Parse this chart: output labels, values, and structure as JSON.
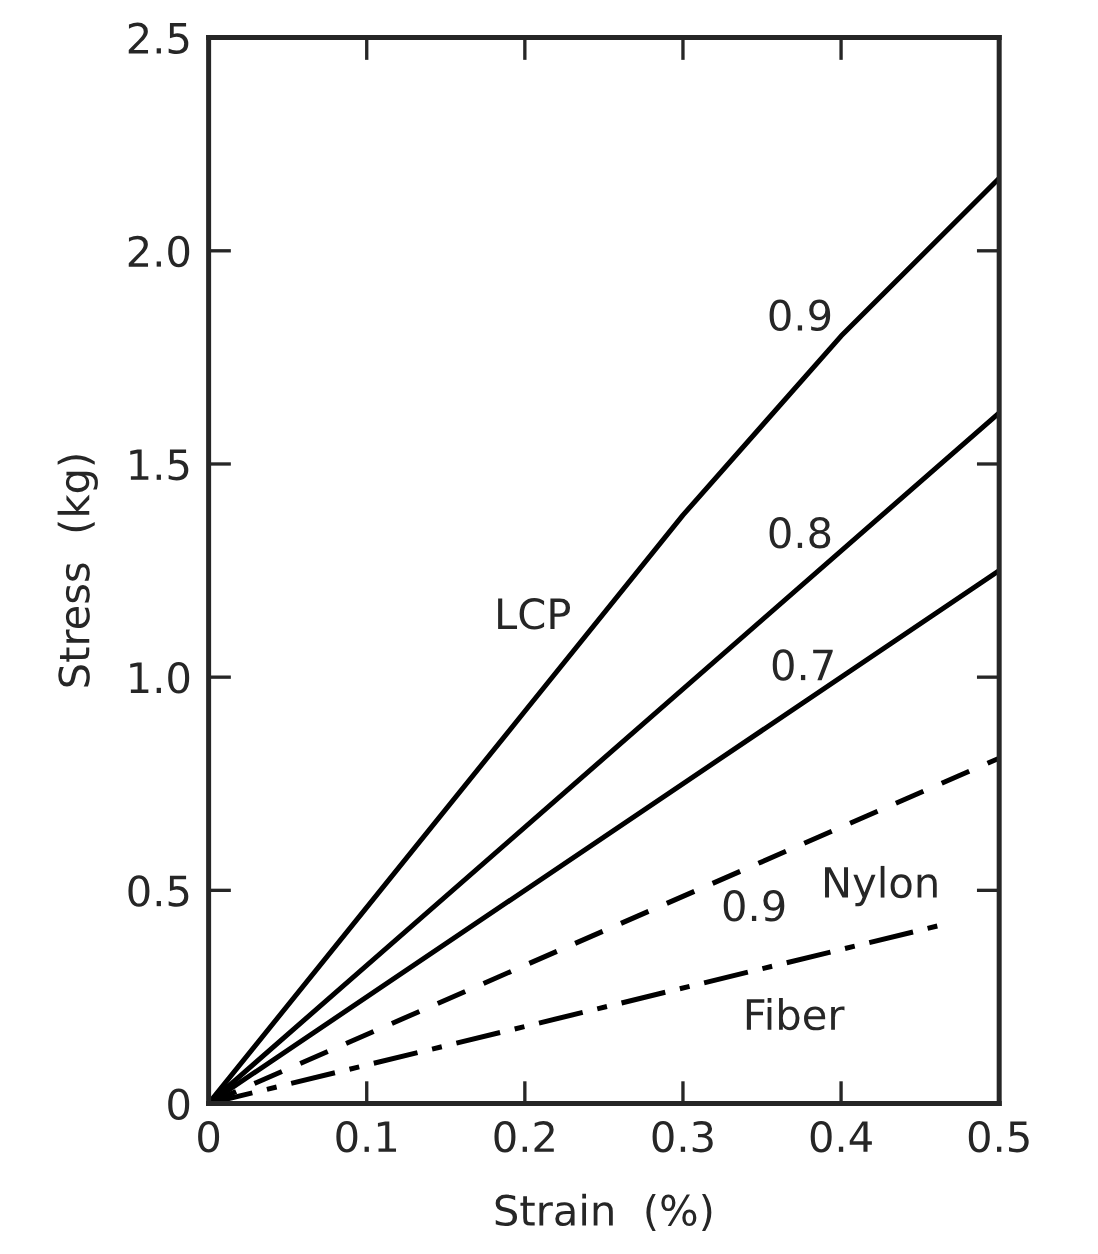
{
  "chart_data": {
    "type": "line",
    "xlabel": "Strain  (%)",
    "ylabel": "Stress  (kg)",
    "xlim": [
      0,
      0.5
    ],
    "ylim": [
      0,
      2.5
    ],
    "xticks": [
      {
        "value": 0,
        "label": "0"
      },
      0.1,
      0.2,
      0.3,
      0.4,
      0.5
    ],
    "yticks": [
      {
        "value": 0,
        "label": "0"
      },
      0.5,
      {
        "value": 1,
        "label": "1.0"
      },
      1.5,
      {
        "value": 2,
        "label": "2.0"
      },
      2.5
    ],
    "grid": false,
    "legend": false,
    "marker": "none",
    "series": [
      {
        "name": "0.9",
        "color": "#000000",
        "line_style": "solid",
        "x": [
          0,
          0.1,
          0.2,
          0.3,
          0.4,
          0.5
        ],
        "values": [
          0,
          0.46,
          0.92,
          1.38,
          1.8,
          2.17
        ]
      },
      {
        "name": "0.8",
        "color": "#000000",
        "line_style": "solid",
        "x": [
          0,
          0.5
        ],
        "values": [
          0,
          1.62
        ]
      },
      {
        "name": "0.7",
        "color": "#000000",
        "line_style": "solid",
        "x": [
          0,
          0.5
        ],
        "values": [
          0,
          1.25
        ]
      },
      {
        "name": "0.9",
        "color": "#000000",
        "line_style": "dashed",
        "x": [
          0,
          0.5
        ],
        "values": [
          0,
          0.81
        ]
      },
      {
        "color": "#000000",
        "line_style": "dashdot",
        "x": [
          0,
          0.465
        ],
        "values": [
          0,
          0.42
        ]
      }
    ],
    "annotations": [
      "LCP",
      "Nylon",
      "Fiber"
    ]
  }
}
